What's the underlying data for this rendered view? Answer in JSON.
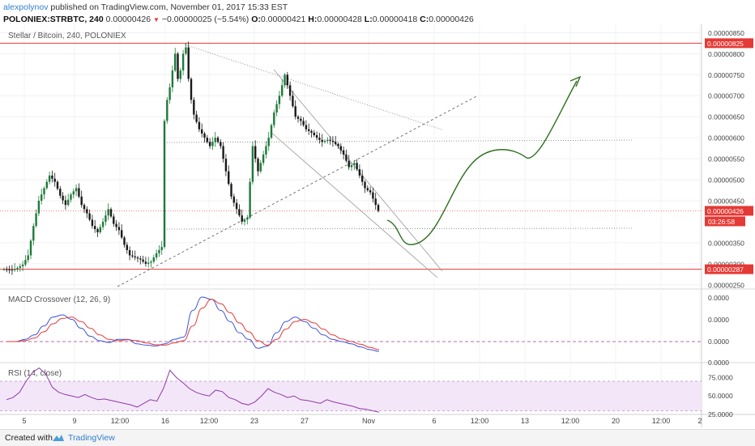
{
  "header": {
    "author": "alexpolynov",
    "published": "published on TradingView.com, November 01, 2017 15:33 EST",
    "symbol_line": "POLONIEX:STRBTC, 240",
    "last_value": "0.00000426",
    "change": "−0.00000025 (−5.54%)",
    "o_label": "O:",
    "o_value": "0.00000421",
    "h_label": "H:",
    "h_value": "0.00000428",
    "l_label": "L:",
    "l_value": "0.00000418",
    "c_label": "C:",
    "c_value": "0.00000426"
  },
  "footer": {
    "created": "Created with",
    "brand": "TradingView"
  },
  "chart_data": [
    {
      "type": "candlestick",
      "title": "Stellar / Bitcoin, 240, POLONIEX",
      "ylim": [
        2.4e-06,
        8.7e-06
      ],
      "y_ticks": [
        "0.00000850",
        "0.00000800",
        "0.00000750",
        "0.00000700",
        "0.00000650",
        "0.00000600",
        "0.00000550",
        "0.00000500",
        "0.00000450",
        "0.00000350",
        "0.00000300",
        "0.00000250"
      ],
      "price_path": [
        [
          0,
          287
        ],
        [
          3,
          285
        ],
        [
          5,
          290
        ],
        [
          7,
          298
        ],
        [
          9,
          320
        ],
        [
          11,
          390
        ],
        [
          13,
          450
        ],
        [
          15,
          480
        ],
        [
          17,
          510
        ],
        [
          19,
          495
        ],
        [
          21,
          462
        ],
        [
          23,
          440
        ],
        [
          25,
          465
        ],
        [
          27,
          480
        ],
        [
          29,
          440
        ],
        [
          31,
          420
        ],
        [
          33,
          390
        ],
        [
          35,
          375
        ],
        [
          37,
          400
        ],
        [
          39,
          430
        ],
        [
          41,
          395
        ],
        [
          43,
          380
        ],
        [
          45,
          345
        ],
        [
          47,
          320
        ],
        [
          49,
          315
        ],
        [
          51,
          310
        ],
        [
          53,
          300
        ],
        [
          55,
          305
        ],
        [
          57,
          325
        ],
        [
          59,
          340
        ],
        [
          60,
          640
        ],
        [
          61,
          690
        ],
        [
          62,
          720
        ],
        [
          63,
          760
        ],
        [
          64,
          800
        ],
        [
          65,
          740
        ],
        [
          66,
          760
        ],
        [
          67,
          800
        ],
        [
          68,
          815
        ],
        [
          69,
          740
        ],
        [
          70,
          690
        ],
        [
          71,
          655
        ],
        [
          73,
          620
        ],
        [
          75,
          600
        ],
        [
          77,
          580
        ],
        [
          79,
          600
        ],
        [
          81,
          580
        ],
        [
          83,
          520
        ],
        [
          85,
          460
        ],
        [
          87,
          430
        ],
        [
          89,
          400
        ],
        [
          91,
          410
        ],
        [
          93,
          580
        ],
        [
          95,
          520
        ],
        [
          97,
          560
        ],
        [
          99,
          600
        ],
        [
          101,
          660
        ],
        [
          103,
          700
        ],
        [
          105,
          750
        ],
        [
          107,
          700
        ],
        [
          109,
          650
        ],
        [
          111,
          640
        ],
        [
          113,
          620
        ],
        [
          115,
          612
        ],
        [
          117,
          600
        ],
        [
          119,
          590
        ],
        [
          121,
          595
        ],
        [
          123,
          590
        ],
        [
          125,
          580
        ],
        [
          127,
          560
        ],
        [
          129,
          530
        ],
        [
          131,
          540
        ],
        [
          133,
          510
        ],
        [
          135,
          480
        ],
        [
          137,
          470
        ],
        [
          139,
          440
        ],
        [
          140,
          426
        ]
      ],
      "levels": [
        {
          "value": "0.00000825",
          "color": "#e53935",
          "style": "solid"
        },
        {
          "value": "0.00000426",
          "color": "#e53935",
          "style": "last"
        },
        {
          "value": "0.00000287",
          "color": "#e53935",
          "style": "solid"
        }
      ],
      "countdown": "03:26:58",
      "projection_color": "#2e6f1e",
      "up_color": "#1e7a3a",
      "down_color": "#1a1a1a"
    },
    {
      "type": "line",
      "title": "MACD Crossover (12, 26, 9)",
      "y_ticks": [
        "0.0000",
        "0.0000",
        "0.0000",
        "0.0000"
      ],
      "series": [
        {
          "values": [
            0.0,
            0.0,
            0.05,
            0.15,
            0.35,
            0.55,
            0.6,
            0.5,
            0.3,
            0.12,
            0.02,
            -0.02,
            0.05,
            0.05,
            -0.05,
            -0.08,
            -0.1,
            -0.05,
            0.05,
            0.1,
            0.7,
            1.0,
            0.95,
            0.7,
            0.45,
            0.2,
            0.05,
            -0.15,
            -0.1,
            0.2,
            0.45,
            0.55,
            0.45,
            0.3,
            0.15,
            0.05,
            0.0,
            -0.05,
            -0.12,
            -0.18,
            -0.22
          ],
          "color": "#3c55d8"
        },
        {
          "values": [
            0.0,
            0.0,
            0.02,
            0.08,
            0.22,
            0.4,
            0.52,
            0.55,
            0.45,
            0.3,
            0.15,
            0.05,
            0.02,
            0.04,
            0.02,
            -0.03,
            -0.07,
            -0.08,
            -0.03,
            0.02,
            0.35,
            0.75,
            0.95,
            0.85,
            0.65,
            0.42,
            0.22,
            0.02,
            -0.08,
            0.05,
            0.28,
            0.45,
            0.5,
            0.42,
            0.28,
            0.15,
            0.06,
            0.0,
            -0.06,
            -0.13,
            -0.18
          ],
          "color": "#e53935"
        }
      ]
    },
    {
      "type": "line",
      "title": "RSI (14, close)",
      "y_ticks": [
        "75.0000",
        "50.0000",
        "25.0000"
      ],
      "ylim": [
        25,
        92
      ],
      "series": [
        {
          "values": [
            45,
            48,
            55,
            70,
            82,
            88,
            80,
            62,
            55,
            52,
            50,
            48,
            52,
            48,
            45,
            46,
            44,
            42,
            40,
            38,
            35,
            40,
            45,
            43,
            60,
            85,
            75,
            68,
            60,
            55,
            52,
            50,
            58,
            56,
            48,
            45,
            40,
            38,
            42,
            50,
            60,
            55,
            52,
            48,
            50,
            45,
            44,
            42,
            40,
            45,
            42,
            40,
            38,
            36,
            33,
            32,
            30,
            28
          ],
          "color": "#8e3aa8"
        }
      ]
    }
  ],
  "x_ticks": [
    "5",
    "9",
    "12:00",
    "16",
    "12:00",
    "23",
    "27",
    "Nov",
    "6",
    "12:00",
    "13",
    "12:00",
    "20",
    "12:00",
    "2"
  ]
}
